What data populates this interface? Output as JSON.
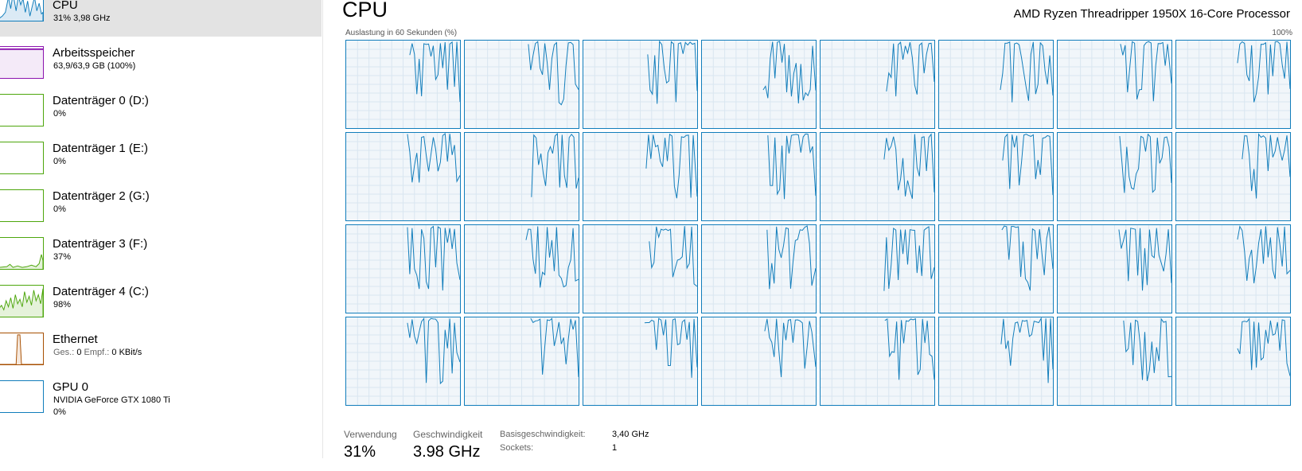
{
  "sidebar": {
    "items": [
      {
        "title": "CPU",
        "sub": "31% 3,98 GHz",
        "icon": "cpu-graph-icon",
        "color": "#117dbb"
      },
      {
        "title": "Arbeitsspeicher",
        "sub": "63,9/63,9 GB (100%)",
        "icon": "memory-graph-icon",
        "color": "#8b12ae"
      },
      {
        "title": "Datenträger 0 (D:)",
        "sub": "0%",
        "icon": "disk-graph-icon",
        "color": "#4da60c"
      },
      {
        "title": "Datenträger 1 (E:)",
        "sub": "0%",
        "icon": "disk-graph-icon",
        "color": "#4da60c"
      },
      {
        "title": "Datenträger 2 (G:)",
        "sub": "0%",
        "icon": "disk-graph-icon",
        "color": "#4da60c"
      },
      {
        "title": "Datenträger 3 (F:)",
        "sub": "37%",
        "icon": "disk-graph-icon",
        "color": "#4da60c"
      },
      {
        "title": "Datenträger 4 (C:)",
        "sub": "98%",
        "icon": "disk-graph-icon",
        "color": "#4da60c"
      },
      {
        "title": "Ethernet",
        "sub_label_send": "Ges.:",
        "sub_val_send": "0",
        "sub_label_recv": "Empf.:",
        "sub_val_recv": "0 KBit/s",
        "icon": "network-graph-icon",
        "color": "#a74f01"
      },
      {
        "title": "GPU 0",
        "sub": "NVIDIA GeForce GTX 1080 Ti",
        "sub2": "0%",
        "icon": "gpu-graph-icon",
        "color": "#117dbb"
      }
    ]
  },
  "main": {
    "title": "CPU",
    "model": "AMD Ryzen Threadripper 1950X 16-Core Processor",
    "graph_caption": "Auslastung in 60 Sekunden (%)",
    "graph_max": "100%",
    "logical_processors": 32,
    "line_color": "#117dbb",
    "graph_bg": "#f1f6fa"
  },
  "stats": {
    "usage_label": "Verwendung",
    "usage_value": "31%",
    "speed_label": "Geschwindigkeit",
    "speed_value": "3.98 GHz",
    "base_speed_label": "Basisgeschwindigkeit:",
    "base_speed_value": "3,40 GHz",
    "sockets_label": "Sockets:",
    "sockets_value": "1"
  }
}
